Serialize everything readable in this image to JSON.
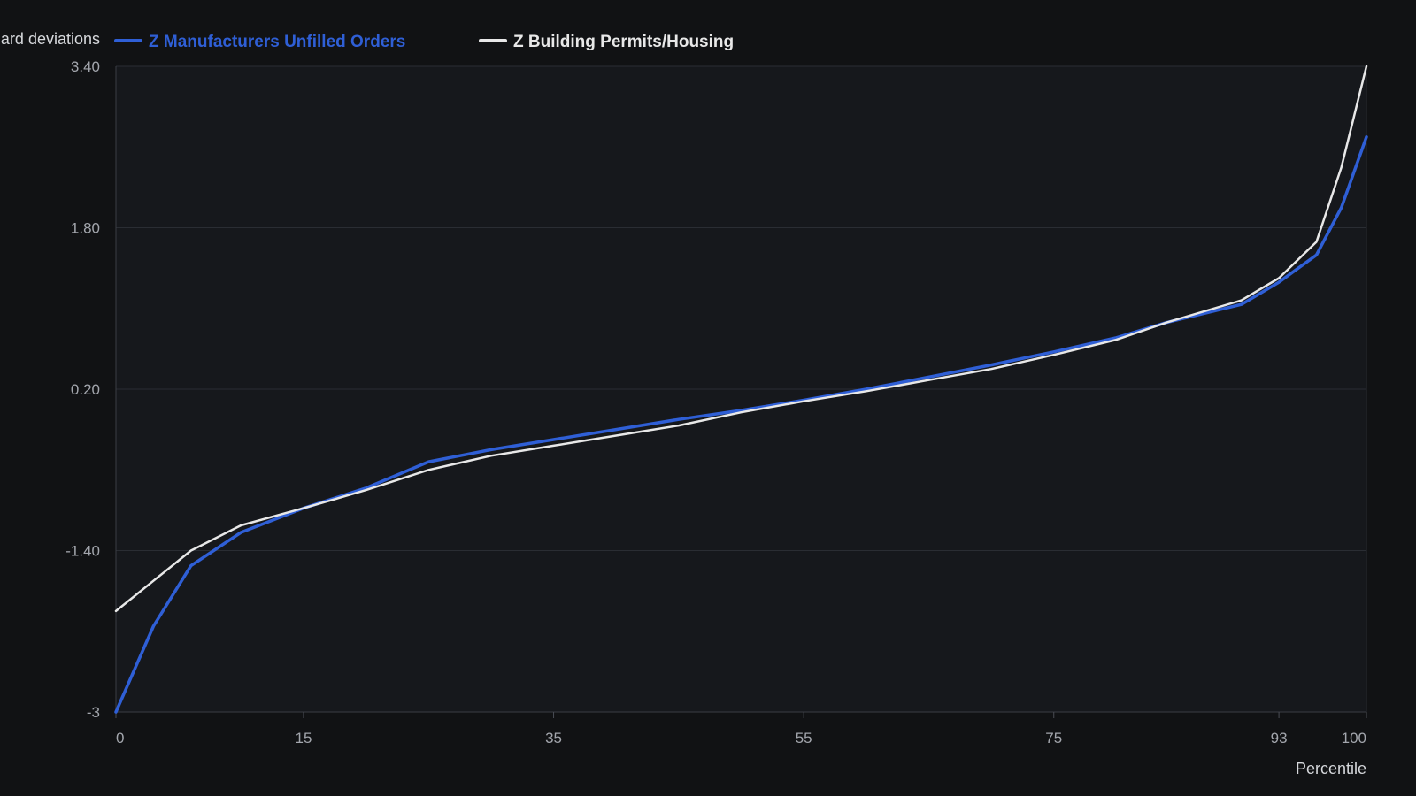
{
  "chart_data": {
    "type": "line",
    "title": "",
    "xlabel": "Percentile",
    "ylabel": "Standard deviations",
    "x_ticks": [
      0,
      15,
      35,
      55,
      75,
      93,
      100
    ],
    "y_ticks": [
      "3.40",
      "1.80",
      "0.20",
      "-1.40",
      "-3"
    ],
    "xlim": [
      0,
      100
    ],
    "ylim": [
      -3,
      3.4
    ],
    "grid": true,
    "legend_position": "top-left",
    "series": [
      {
        "name": "Z Manufacturers Unfilled Orders",
        "color": "#2f5fd6",
        "x": [
          0,
          3,
          6,
          10,
          15,
          20,
          25,
          30,
          35,
          40,
          45,
          50,
          55,
          60,
          65,
          70,
          75,
          80,
          84,
          90,
          93,
          96,
          98,
          100
        ],
        "y": [
          -3.0,
          -2.15,
          -1.55,
          -1.22,
          -0.98,
          -0.78,
          -0.52,
          -0.4,
          -0.3,
          -0.2,
          -0.1,
          -0.01,
          0.09,
          0.2,
          0.32,
          0.44,
          0.57,
          0.71,
          0.86,
          1.04,
          1.26,
          1.53,
          2.0,
          2.7
        ],
        "stroke_width": 3.5
      },
      {
        "name": "Z Building Permits/Housing",
        "color": "#e8e8e8",
        "x": [
          0,
          3,
          6,
          10,
          15,
          20,
          25,
          30,
          35,
          40,
          45,
          50,
          55,
          60,
          65,
          70,
          75,
          80,
          84,
          90,
          93,
          96,
          98,
          100
        ],
        "y": [
          -2.0,
          -1.7,
          -1.4,
          -1.15,
          -0.98,
          -0.8,
          -0.6,
          -0.46,
          -0.36,
          -0.26,
          -0.16,
          -0.03,
          0.08,
          0.18,
          0.29,
          0.4,
          0.54,
          0.69,
          0.86,
          1.08,
          1.3,
          1.66,
          2.4,
          3.4
        ],
        "stroke_width": 2.5
      }
    ]
  }
}
